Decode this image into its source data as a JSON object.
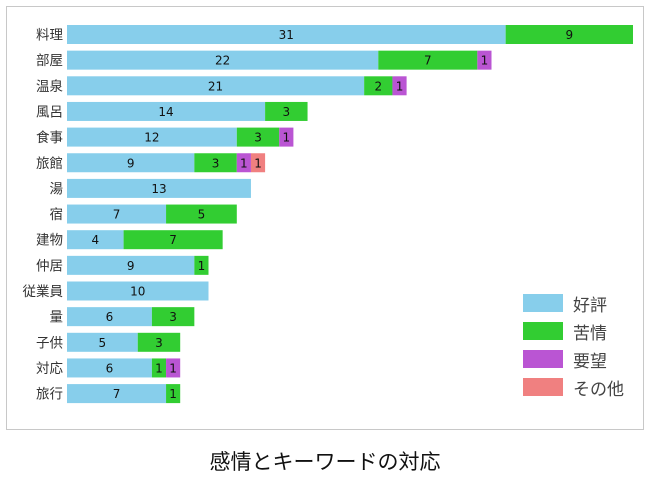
{
  "caption": "感情とキーワードの対応",
  "chart_data": {
    "type": "bar",
    "orientation": "horizontal",
    "stacked": true,
    "title": "",
    "xlabel": "",
    "ylabel": "",
    "categories": [
      "料理",
      "部屋",
      "温泉",
      "風呂",
      "食事",
      "旅館",
      "湯",
      "宿",
      "建物",
      "仲居",
      "従業員",
      "量",
      "子供",
      "対応",
      "旅行"
    ],
    "series": [
      {
        "name": "好評",
        "color": "#87CEEB",
        "values": [
          31,
          22,
          21,
          14,
          12,
          9,
          13,
          7,
          4,
          9,
          10,
          6,
          5,
          6,
          7
        ]
      },
      {
        "name": "苦情",
        "color": "#32CD32",
        "values": [
          9,
          7,
          2,
          3,
          3,
          3,
          0,
          5,
          7,
          1,
          0,
          3,
          3,
          1,
          1
        ]
      },
      {
        "name": "要望",
        "color": "#BA55D3",
        "values": [
          0,
          1,
          1,
          0,
          1,
          1,
          0,
          0,
          0,
          0,
          0,
          0,
          0,
          1,
          0
        ]
      },
      {
        "name": "その他",
        "color": "#F08080",
        "values": [
          0,
          0,
          0,
          0,
          0,
          1,
          0,
          0,
          0,
          0,
          0,
          0,
          0,
          0,
          0
        ]
      }
    ],
    "xlim": [
      0,
      40
    ],
    "grid": false,
    "legend_position": "bottom-right"
  }
}
